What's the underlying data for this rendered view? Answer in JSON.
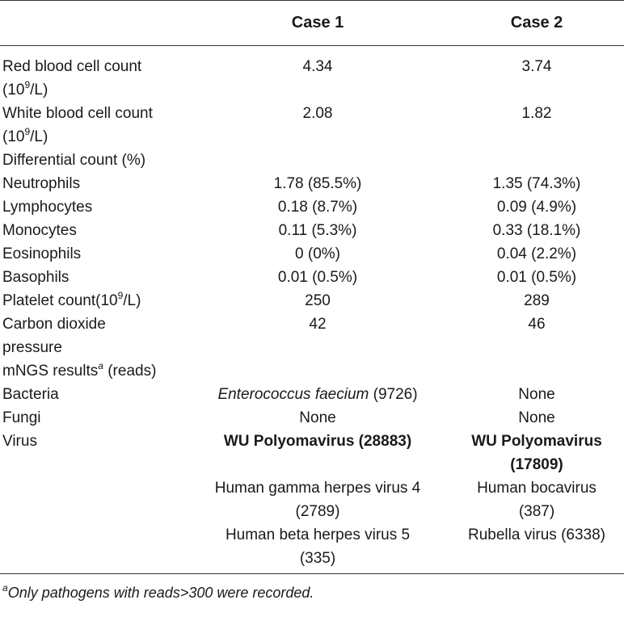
{
  "header": {
    "col0": "",
    "col1": "Case 1",
    "col2": "Case 2"
  },
  "rows": {
    "rbc": {
      "label_a": "Red blood cell count",
      "label_b_pre": "(10",
      "label_b_sup": "9",
      "label_b_post": "/L)",
      "case1": "4.34",
      "case2": "3.74"
    },
    "wbc": {
      "label_a": "White blood cell count",
      "label_b_pre": "(10",
      "label_b_sup": "9",
      "label_b_post": "/L)",
      "case1": "2.08",
      "case2": "1.82"
    },
    "diff": {
      "label": "Differential count (%)"
    },
    "neut": {
      "label": "Neutrophils",
      "case1": "1.78 (85.5%)",
      "case2": "1.35 (74.3%)"
    },
    "lymph": {
      "label": "Lymphocytes",
      "case1": "0.18 (8.7%)",
      "case2": "0.09 (4.9%)"
    },
    "mono": {
      "label": "Monocytes",
      "case1": "0.11 (5.3%)",
      "case2": "0.33 (18.1%)"
    },
    "eos": {
      "label": "Eosinophils",
      "case1": "0 (0%)",
      "case2": "0.04 (2.2%)"
    },
    "baso": {
      "label": "Basophils",
      "case1": "0.01 (0.5%)",
      "case2": "0.01 (0.5%)"
    },
    "plt": {
      "label_pre": "Platelet count(10",
      "label_sup": "9",
      "label_post": "/L)",
      "case1": "250",
      "case2": "289"
    },
    "co2": {
      "label_a": "Carbon dioxide",
      "label_b": "pressure",
      "case1": "42",
      "case2": "46"
    },
    "mngs": {
      "label_pre": "mNGS results",
      "label_sup": "a",
      "label_post": " (reads)"
    },
    "bact": {
      "label": "Bacteria",
      "case1_italic": "Enterococcus faecium",
      "case1_rest": " (9726)",
      "case2": "None"
    },
    "fungi": {
      "label": "Fungi",
      "case1": "None",
      "case2": "None"
    },
    "virus": {
      "label": "Virus",
      "case1": "WU Polyomavirus (28883)",
      "case2_a": "WU Polyomavirus",
      "case2_b": "(17809)"
    },
    "virus2": {
      "case1_a": "Human gamma herpes virus 4",
      "case1_b": "(2789)",
      "case2_a": "Human bocavirus",
      "case2_b": "(387)"
    },
    "virus3": {
      "case1_a": "Human beta herpes virus 5",
      "case1_b": "(335)",
      "case2": "Rubella virus (6338)"
    }
  },
  "footnote": {
    "sup": "a",
    "text": "Only pathogens with reads>300 were recorded."
  }
}
